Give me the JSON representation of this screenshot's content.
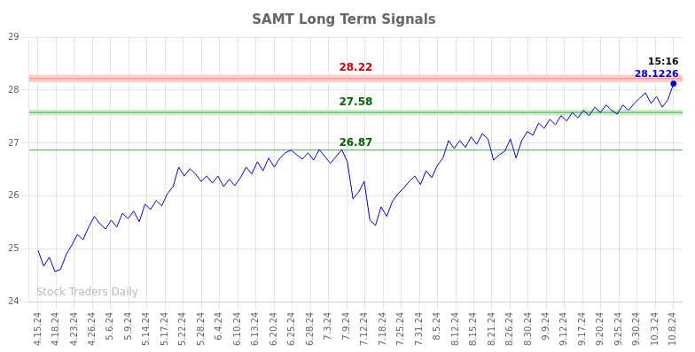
{
  "chart_data": {
    "type": "line",
    "title": "SAMT Long Term Signals",
    "color": "#0000cc",
    "values": [
      24.98,
      24.68,
      24.85,
      24.58,
      24.62,
      24.9,
      25.08,
      25.28,
      25.18,
      25.42,
      25.62,
      25.48,
      25.38,
      25.55,
      25.42,
      25.68,
      25.58,
      25.72,
      25.52,
      25.85,
      25.75,
      25.92,
      25.82,
      26.05,
      26.18,
      26.55,
      26.38,
      26.52,
      26.42,
      26.28,
      26.38,
      26.25,
      26.38,
      26.18,
      26.32,
      26.2,
      26.35,
      26.55,
      26.42,
      26.65,
      26.48,
      26.72,
      26.55,
      26.72,
      26.82,
      26.87,
      26.78,
      26.7,
      26.82,
      26.68,
      26.88,
      26.75,
      26.62,
      26.75,
      26.88,
      26.65,
      25.95,
      26.08,
      26.28,
      25.55,
      25.45,
      25.8,
      25.62,
      25.9,
      26.05,
      26.15,
      26.28,
      26.38,
      26.22,
      26.48,
      26.35,
      26.58,
      26.72,
      27.05,
      26.9,
      27.05,
      26.92,
      27.12,
      26.98,
      27.18,
      27.08,
      26.68,
      26.78,
      26.85,
      27.08,
      26.72,
      27.05,
      27.22,
      27.15,
      27.38,
      27.28,
      27.45,
      27.35,
      27.52,
      27.42,
      27.58,
      27.48,
      27.62,
      27.52,
      27.68,
      27.58,
      27.72,
      27.62,
      27.55,
      27.72,
      27.62,
      27.75,
      27.85,
      27.95,
      27.75,
      27.88,
      27.68,
      27.82,
      28.1226
    ],
    "xlim": [
      -0.5,
      35.5
    ],
    "xticks": [
      {
        "value": 0,
        "label": "4.15.24"
      },
      {
        "value": 1,
        "label": "4.18.24"
      },
      {
        "value": 2,
        "label": "4.23.24"
      },
      {
        "value": 3,
        "label": "4.26.24"
      },
      {
        "value": 4,
        "label": "5.6.24"
      },
      {
        "value": 5,
        "label": "5.9.24"
      },
      {
        "value": 6,
        "label": "5.14.24"
      },
      {
        "value": 7,
        "label": "5.17.24"
      },
      {
        "value": 8,
        "label": "5.22.24"
      },
      {
        "value": 9,
        "label": "5.28.24"
      },
      {
        "value": 10,
        "label": "6.4.24"
      },
      {
        "value": 11,
        "label": "6.10.24"
      },
      {
        "value": 12,
        "label": "6.13.24"
      },
      {
        "value": 13,
        "label": "6.20.24"
      },
      {
        "value": 14,
        "label": "6.25.24"
      },
      {
        "value": 15,
        "label": "6.28.24"
      },
      {
        "value": 16,
        "label": "7.3.24"
      },
      {
        "value": 17,
        "label": "7.9.24"
      },
      {
        "value": 18,
        "label": "7.12.24"
      },
      {
        "value": 19,
        "label": "7.18.24"
      },
      {
        "value": 20,
        "label": "7.25.24"
      },
      {
        "value": 21,
        "label": "7.31.24"
      },
      {
        "value": 22,
        "label": "8.5.24"
      },
      {
        "value": 23,
        "label": "8.12.24"
      },
      {
        "value": 24,
        "label": "8.15.24"
      },
      {
        "value": 25,
        "label": "8.21.24"
      },
      {
        "value": 26,
        "label": "8.26.24"
      },
      {
        "value": 27,
        "label": "8.30.24"
      },
      {
        "value": 28,
        "label": "9.9.24"
      },
      {
        "value": 29,
        "label": "9.12.24"
      },
      {
        "value": 30,
        "label": "9.17.24"
      },
      {
        "value": 31,
        "label": "9.20.24"
      },
      {
        "value": 32,
        "label": "9.25.24"
      },
      {
        "value": 33,
        "label": "9.30.24"
      },
      {
        "value": 34,
        "label": "10.3.24"
      },
      {
        "value": 35,
        "label": "10.8.24"
      }
    ],
    "ylim": [
      24,
      29
    ],
    "yticks": [
      24,
      25,
      26,
      27,
      28,
      29
    ],
    "grid": true,
    "lines": [
      {
        "y": 28.22,
        "band_half_width": 0.07,
        "band_color": "#ffcccc",
        "color": "#ff8888",
        "label": "28.22",
        "label_color": "#cc0000"
      },
      {
        "y": 27.58,
        "band_half_width": 0.055,
        "band_color": "#cceecc",
        "color": "#44aa44",
        "label": "27.58",
        "label_color": "#006600"
      },
      {
        "y": 26.87,
        "band_half_width": 0.0,
        "band_color": "#cceecc",
        "color": "#44aa44",
        "label": "26.87",
        "label_color": "#006600"
      }
    ],
    "last_point_labels": [
      {
        "text": "15:16",
        "color": "#000000"
      },
      {
        "text": "28.1226",
        "color": "#0000cc"
      }
    ],
    "watermark": {
      "text": "Stock Traders Daily",
      "color": "#bbbbbb"
    }
  }
}
